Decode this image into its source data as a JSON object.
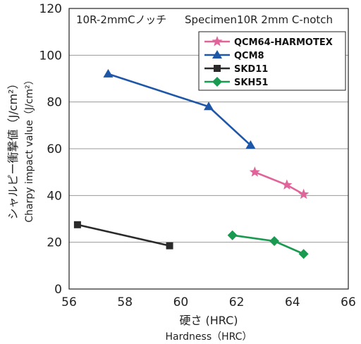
{
  "chart_data": {
    "type": "line",
    "title": "10R-2mmCノッチ",
    "subtitle": "Specimen10R 2mm C-notch",
    "xlabel": "硬さ (HRC)",
    "xlabel_en": "Hardness（HRC）",
    "ylabel": "シャルピー衝撃値（J/cm²）",
    "ylabel_en": "Charpy impact value（J/cm²）",
    "xlim": [
      56,
      66
    ],
    "ylim": [
      0,
      120
    ],
    "xticks": [
      "56",
      "58",
      "60",
      "62",
      "64",
      "66"
    ],
    "yticks": [
      "0",
      "20",
      "40",
      "60",
      "80",
      "100",
      "120"
    ],
    "grid": true,
    "legend_position": "top-right",
    "series": [
      {
        "name": "QCM64-HARMOTEX",
        "color": "#e0649a",
        "marker": "star",
        "x": [
          62.65,
          63.8,
          64.4
        ],
        "y": [
          50,
          44.5,
          40.5
        ]
      },
      {
        "name": "QCM8",
        "color": "#1f57a8",
        "marker": "triangle",
        "x": [
          57.4,
          61.0,
          62.5
        ],
        "y": [
          92,
          78,
          61.5
        ]
      },
      {
        "name": "SKD11",
        "color": "#2a2a2a",
        "marker": "square",
        "x": [
          56.3,
          59.6
        ],
        "y": [
          27.5,
          18.5
        ]
      },
      {
        "name": "SKH51",
        "color": "#1a9950",
        "marker": "diamond",
        "x": [
          61.85,
          63.35,
          64.4
        ],
        "y": [
          23,
          20.5,
          15
        ]
      }
    ]
  }
}
